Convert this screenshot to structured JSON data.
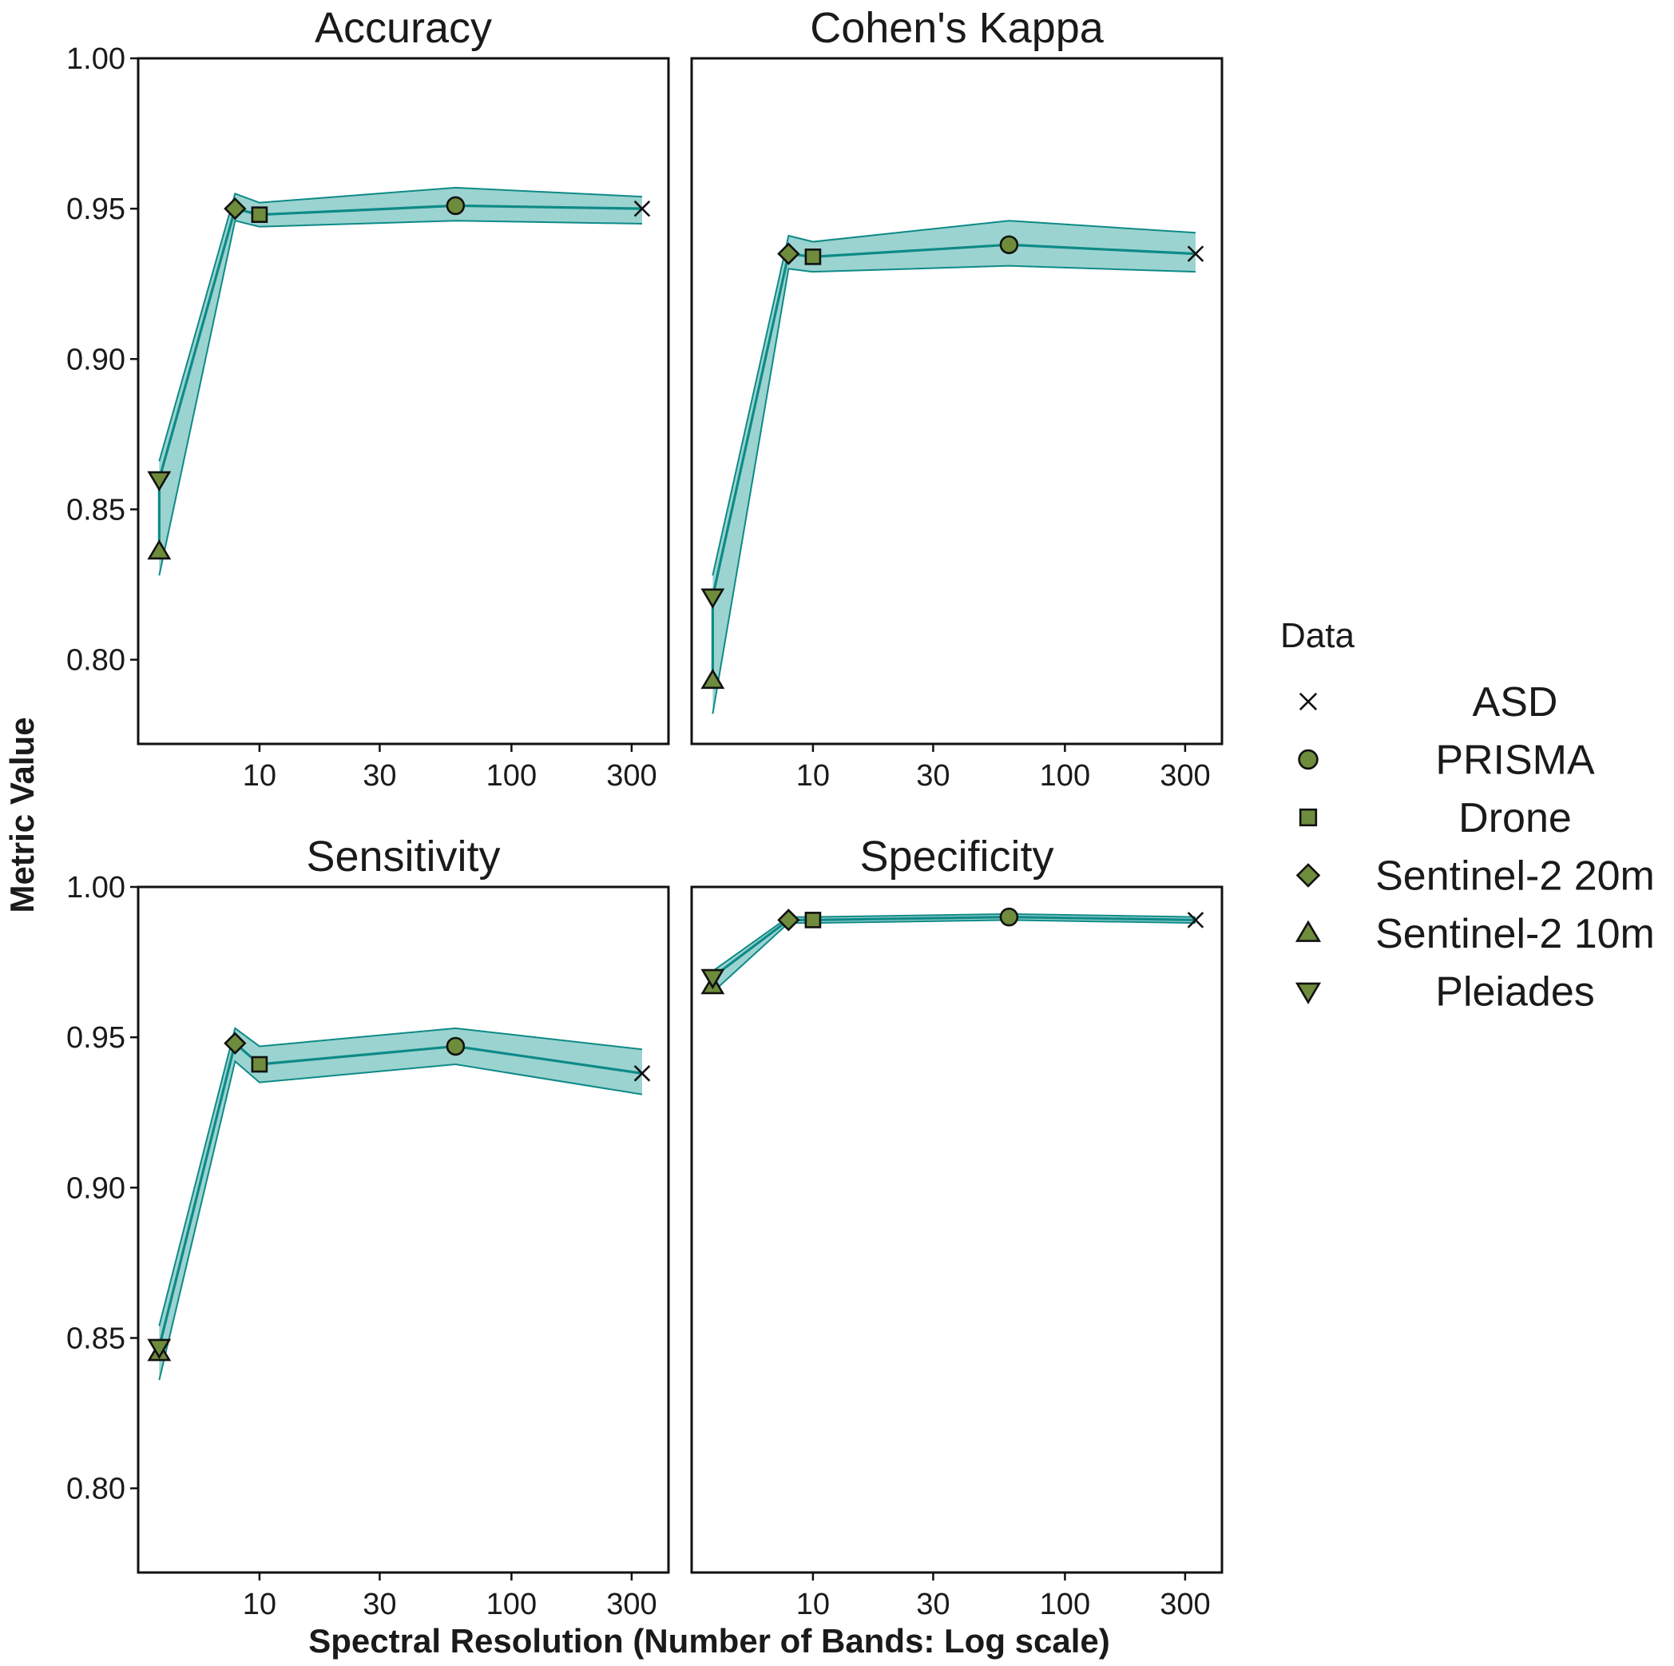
{
  "chart_data": {
    "type": "line",
    "facets": [
      "Accuracy",
      "Cohen's Kappa",
      "Sensitivity",
      "Specificity"
    ],
    "xlabel": "Spectral Resolution (Number of Bands: Log scale)",
    "ylabel": "Metric Value",
    "x_scale": "log",
    "x_ticks": [
      10,
      30,
      100,
      300
    ],
    "x_tick_labels": [
      "10",
      "30",
      "100",
      "300"
    ],
    "y_ticks": [
      0.8,
      0.85,
      0.9,
      0.95,
      1.0
    ],
    "y_tick_labels": [
      "0.80",
      "0.85",
      "0.90",
      "0.95",
      "1.00"
    ],
    "xlim": [
      3.3,
      420
    ],
    "ylim": [
      0.772,
      1.0
    ],
    "colors": {
      "line": "#0e8a87",
      "ribbon": "#9bd3d0",
      "marker_fill": "#6e8c3c",
      "marker_stroke": "#111111",
      "panel_border": "#111111"
    },
    "legend": {
      "title": "Data",
      "position": "right",
      "entries": [
        {
          "label": "ASD",
          "shape": "cross"
        },
        {
          "label": "PRISMA",
          "shape": "circle"
        },
        {
          "label": "Drone",
          "shape": "square"
        },
        {
          "label": "Sentinel-2 20m",
          "shape": "diamond"
        },
        {
          "label": "Sentinel-2 10m",
          "shape": "triangle-up"
        },
        {
          "label": "Pleiades",
          "shape": "triangle-down"
        }
      ]
    },
    "panels": [
      {
        "title": "Accuracy",
        "points": [
          {
            "dataset": "Sentinel-2 10m",
            "bands": 4,
            "value": 0.836,
            "lower": 0.828,
            "upper": 0.845
          },
          {
            "dataset": "Pleiades",
            "bands": 4,
            "value": 0.86,
            "lower": 0.855,
            "upper": 0.866
          },
          {
            "dataset": "Sentinel-2 20m",
            "bands": 8,
            "value": 0.95,
            "lower": 0.946,
            "upper": 0.955
          },
          {
            "dataset": "Drone",
            "bands": 10,
            "value": 0.948,
            "lower": 0.944,
            "upper": 0.952
          },
          {
            "dataset": "PRISMA",
            "bands": 60,
            "value": 0.951,
            "lower": 0.946,
            "upper": 0.957
          },
          {
            "dataset": "ASD",
            "bands": 330,
            "value": 0.95,
            "lower": 0.945,
            "upper": 0.954
          }
        ]
      },
      {
        "title": "Cohen's Kappa",
        "points": [
          {
            "dataset": "Sentinel-2 10m",
            "bands": 4,
            "value": 0.793,
            "lower": 0.782,
            "upper": 0.804
          },
          {
            "dataset": "Pleiades",
            "bands": 4,
            "value": 0.821,
            "lower": 0.815,
            "upper": 0.828
          },
          {
            "dataset": "Sentinel-2 20m",
            "bands": 8,
            "value": 0.935,
            "lower": 0.93,
            "upper": 0.941
          },
          {
            "dataset": "Drone",
            "bands": 10,
            "value": 0.934,
            "lower": 0.929,
            "upper": 0.939
          },
          {
            "dataset": "PRISMA",
            "bands": 60,
            "value": 0.938,
            "lower": 0.931,
            "upper": 0.946
          },
          {
            "dataset": "ASD",
            "bands": 330,
            "value": 0.935,
            "lower": 0.929,
            "upper": 0.942
          }
        ]
      },
      {
        "title": "Sensitivity",
        "points": [
          {
            "dataset": "Sentinel-2 10m",
            "bands": 4,
            "value": 0.845,
            "lower": 0.836,
            "upper": 0.854
          },
          {
            "dataset": "Pleiades",
            "bands": 4,
            "value": 0.847,
            "lower": 0.84,
            "upper": 0.854
          },
          {
            "dataset": "Sentinel-2 20m",
            "bands": 8,
            "value": 0.948,
            "lower": 0.942,
            "upper": 0.953
          },
          {
            "dataset": "Drone",
            "bands": 10,
            "value": 0.941,
            "lower": 0.935,
            "upper": 0.947
          },
          {
            "dataset": "PRISMA",
            "bands": 60,
            "value": 0.947,
            "lower": 0.941,
            "upper": 0.953
          },
          {
            "dataset": "ASD",
            "bands": 330,
            "value": 0.938,
            "lower": 0.931,
            "upper": 0.946
          }
        ]
      },
      {
        "title": "Specificity",
        "points": [
          {
            "dataset": "Sentinel-2 10m",
            "bands": 4,
            "value": 0.967,
            "lower": 0.965,
            "upper": 0.97
          },
          {
            "dataset": "Pleiades",
            "bands": 4,
            "value": 0.97,
            "lower": 0.968,
            "upper": 0.972
          },
          {
            "dataset": "Sentinel-2 20m",
            "bands": 8,
            "value": 0.989,
            "lower": 0.988,
            "upper": 0.99
          },
          {
            "dataset": "Drone",
            "bands": 10,
            "value": 0.989,
            "lower": 0.988,
            "upper": 0.99
          },
          {
            "dataset": "PRISMA",
            "bands": 60,
            "value": 0.99,
            "lower": 0.989,
            "upper": 0.991
          },
          {
            "dataset": "ASD",
            "bands": 330,
            "value": 0.989,
            "lower": 0.988,
            "upper": 0.99
          }
        ]
      }
    ]
  }
}
